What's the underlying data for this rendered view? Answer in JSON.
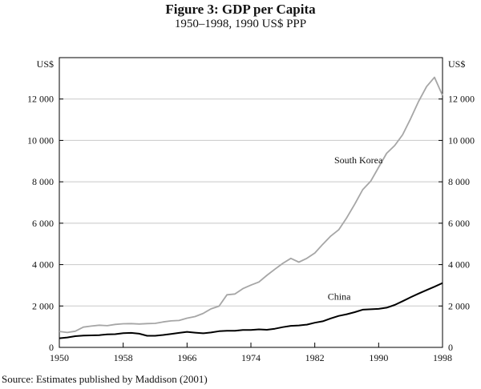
{
  "chart_data": {
    "type": "line",
    "title": "Figure 3: GDP per Capita",
    "subtitle": "1950–1998, 1990 US$ PPP",
    "ylabel_left": "US$",
    "ylabel_right": "US$",
    "xlim": [
      1950,
      1998
    ],
    "ylim": [
      0,
      14000
    ],
    "x_ticks": [
      1950,
      1958,
      1966,
      1974,
      1982,
      1990,
      1998
    ],
    "y_ticks": [
      0,
      2000,
      4000,
      6000,
      8000,
      10000,
      12000
    ],
    "y_tick_labels": [
      "0",
      "2 000",
      "4 000",
      "6 000",
      "8 000",
      "10 000",
      "12 000"
    ],
    "source": "Source: Estimates published by Maddison (2001)",
    "series": [
      {
        "name": "South Korea",
        "color": "#a6a6a6",
        "x": [
          1950,
          1951,
          1952,
          1953,
          1954,
          1955,
          1956,
          1957,
          1958,
          1959,
          1960,
          1961,
          1962,
          1963,
          1964,
          1965,
          1966,
          1967,
          1968,
          1969,
          1970,
          1971,
          1972,
          1973,
          1974,
          1975,
          1976,
          1977,
          1978,
          1979,
          1980,
          1981,
          1982,
          1983,
          1984,
          1985,
          1986,
          1987,
          1988,
          1989,
          1990,
          1991,
          1992,
          1993,
          1994,
          1995,
          1996,
          1997,
          1998
        ],
        "values": [
          770,
          720,
          780,
          980,
          1030,
          1070,
          1050,
          1110,
          1140,
          1150,
          1130,
          1150,
          1160,
          1230,
          1280,
          1300,
          1410,
          1490,
          1640,
          1860,
          1990,
          2540,
          2580,
          2840,
          3010,
          3160,
          3480,
          3780,
          4060,
          4300,
          4120,
          4300,
          4560,
          4980,
          5380,
          5680,
          6260,
          6920,
          7620,
          8030,
          8700,
          9380,
          9750,
          10270,
          11050,
          11880,
          12600,
          13050,
          12170
        ]
      },
      {
        "name": "China",
        "color": "#000000",
        "x": [
          1950,
          1951,
          1952,
          1953,
          1954,
          1955,
          1956,
          1957,
          1958,
          1959,
          1960,
          1961,
          1962,
          1963,
          1964,
          1965,
          1966,
          1967,
          1968,
          1969,
          1970,
          1971,
          1972,
          1973,
          1974,
          1975,
          1976,
          1977,
          1978,
          1979,
          1980,
          1981,
          1982,
          1983,
          1984,
          1985,
          1986,
          1987,
          1988,
          1989,
          1990,
          1991,
          1992,
          1993,
          1994,
          1995,
          1996,
          1997,
          1998
        ],
        "values": [
          440,
          480,
          540,
          570,
          580,
          590,
          630,
          640,
          690,
          700,
          660,
          560,
          560,
          600,
          650,
          700,
          750,
          710,
          680,
          720,
          780,
          800,
          800,
          840,
          840,
          870,
          850,
          900,
          980,
          1040,
          1060,
          1100,
          1190,
          1260,
          1400,
          1520,
          1600,
          1700,
          1820,
          1840,
          1860,
          1920,
          2050,
          2230,
          2420,
          2600,
          2770,
          2930,
          3110
        ]
      }
    ],
    "annotations": [
      {
        "text": "South Korea",
        "x": 1990.5,
        "y": 8900
      },
      {
        "text": "China",
        "x": 1986.5,
        "y": 2300
      }
    ]
  }
}
